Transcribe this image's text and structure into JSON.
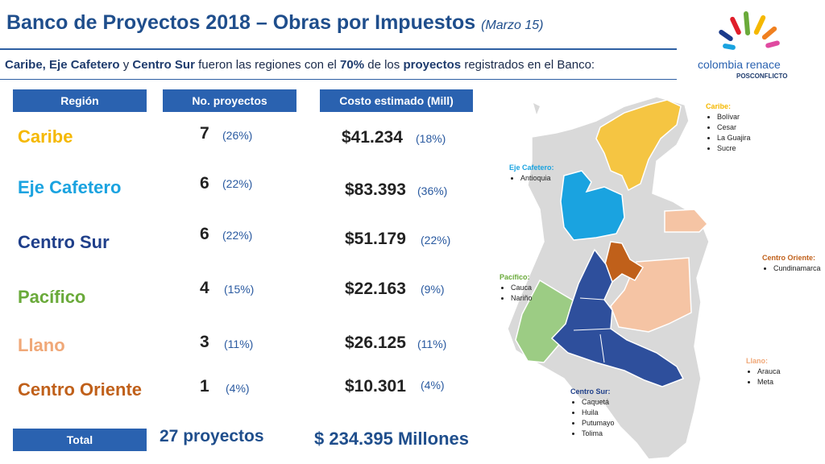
{
  "header": {
    "title": "Banco de Proyectos 2018 – Obras por Impuestos",
    "date": "(Marzo 15)",
    "subtitle_parts": [
      "Caribe, Eje Cafetero",
      " y ",
      "Centro Sur",
      " fueron las regiones con el ",
      "70%",
      " de los ",
      "proyectos",
      " registrados en el Banco:"
    ]
  },
  "logo": {
    "line1": "colombia renace",
    "line2": "POSCONFLICTO"
  },
  "table": {
    "headers": [
      "Región",
      "No. proyectos",
      "Costo estimado (Mill)"
    ],
    "rows": [
      {
        "region": "Caribe",
        "count": "7",
        "count_pct": "(26%)",
        "cost": "$41.234",
        "cost_pct": "(18%)"
      },
      {
        "region": "Eje Cafetero",
        "count": "6",
        "count_pct": "(22%)",
        "cost": "$83.393",
        "cost_pct": "(36%)"
      },
      {
        "region": "Centro Sur",
        "count": "6",
        "count_pct": "(22%)",
        "cost": "$51.179",
        "cost_pct": "(22%)"
      },
      {
        "region": "Pacífico",
        "count": "4",
        "count_pct": "(15%)",
        "cost": "$22.163",
        "cost_pct": "(9%)"
      },
      {
        "region": "Llano",
        "count": "3",
        "count_pct": "(11%)",
        "cost": "$26.125",
        "cost_pct": "(11%)"
      },
      {
        "region": "Centro Oriente",
        "count": "1",
        "count_pct": "(4%)",
        "cost": "$10.301",
        "cost_pct": "(4%)"
      }
    ],
    "total_label": "Total",
    "total_projects": "27 proyectos",
    "total_cost": "$ 234.395 Millones"
  },
  "colors": {
    "caribe": "#f5b800",
    "eje_cafetero": "#1aa3e0",
    "centro_sur": "#1f3f8a",
    "pacifico": "#6aaa3a",
    "llano": "#f0a878",
    "centro_oriente": "#c0601a",
    "header_blue": "#2a62b0"
  },
  "map_legend": {
    "caribe": {
      "title": "Caribe:",
      "items": [
        "Bolívar",
        "Cesar",
        "La Guajira",
        "Sucre"
      ]
    },
    "eje_cafetero": {
      "title": "Eje Cafetero:",
      "items": [
        "Antioquia"
      ]
    },
    "centro_oriente": {
      "title": "Centro Oriente:",
      "items": [
        "Cundinamarca"
      ]
    },
    "pacifico": {
      "title": "Pacífico:",
      "items": [
        "Cauca",
        "Nariño"
      ]
    },
    "llano": {
      "title": "Llano:",
      "items": [
        "Arauca",
        "Meta"
      ]
    },
    "centro_sur": {
      "title": "Centro Sur:",
      "items": [
        "Caquetá",
        "Huila",
        "Putumayo",
        "Tolima"
      ]
    }
  }
}
